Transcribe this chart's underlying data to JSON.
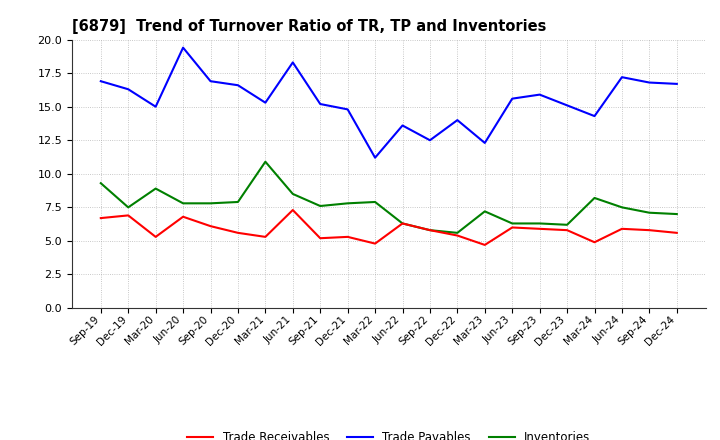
{
  "title": "[6879]  Trend of Turnover Ratio of TR, TP and Inventories",
  "xlabels": [
    "Sep-19",
    "Dec-19",
    "Mar-20",
    "Jun-20",
    "Sep-20",
    "Dec-20",
    "Mar-21",
    "Jun-21",
    "Sep-21",
    "Dec-21",
    "Mar-22",
    "Jun-22",
    "Sep-22",
    "Dec-22",
    "Mar-23",
    "Jun-23",
    "Sep-23",
    "Dec-23",
    "Mar-24",
    "Jun-24",
    "Sep-24",
    "Dec-24"
  ],
  "trade_receivables": [
    6.7,
    6.9,
    5.3,
    6.8,
    6.1,
    5.6,
    5.3,
    7.3,
    5.2,
    5.3,
    4.8,
    6.3,
    5.8,
    5.4,
    4.7,
    6.0,
    5.9,
    5.8,
    4.9,
    5.9,
    5.8,
    5.6
  ],
  "trade_payables": [
    16.9,
    16.3,
    15.0,
    19.4,
    16.9,
    16.6,
    15.3,
    18.3,
    15.2,
    14.8,
    11.2,
    13.6,
    12.5,
    14.0,
    12.3,
    15.6,
    15.9,
    15.1,
    14.3,
    17.2,
    16.8,
    16.7
  ],
  "inventories": [
    9.3,
    7.5,
    8.9,
    7.8,
    7.8,
    7.9,
    10.9,
    8.5,
    7.6,
    7.8,
    7.9,
    6.3,
    5.8,
    5.6,
    7.2,
    6.3,
    6.3,
    6.2,
    8.2,
    7.5,
    7.1,
    7.0
  ],
  "ylim": [
    0.0,
    20.0
  ],
  "yticks": [
    0.0,
    2.5,
    5.0,
    7.5,
    10.0,
    12.5,
    15.0,
    17.5,
    20.0
  ],
  "line_colors": {
    "trade_receivables": "#ff0000",
    "trade_payables": "#0000ff",
    "inventories": "#008000"
  },
  "legend_labels": [
    "Trade Receivables",
    "Trade Payables",
    "Inventories"
  ],
  "background_color": "#ffffff",
  "grid_color": "#999999"
}
